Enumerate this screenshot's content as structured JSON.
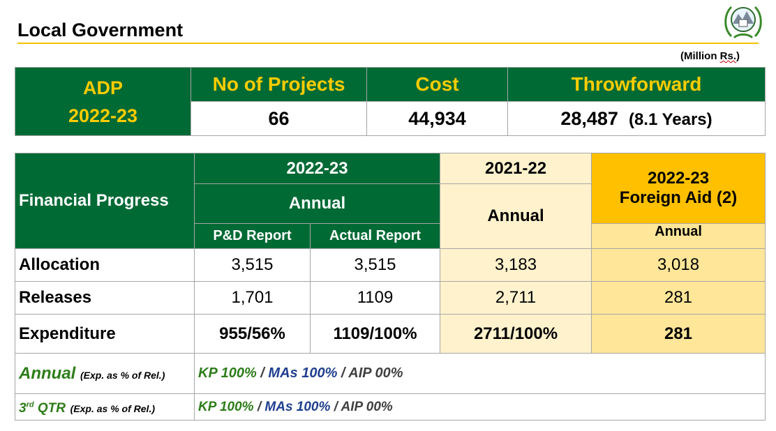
{
  "header": {
    "title": "Local Government",
    "units_open": "(Million ",
    "units_word": "Rs.",
    "units_close": ")"
  },
  "summary": {
    "adp_label": "ADP",
    "adp_year": "2022-23",
    "col_projects": "No of Projects",
    "col_cost": "Cost",
    "col_throwforward": "Throwforward",
    "projects": "66",
    "cost": "44,934",
    "throwforward": "28,487",
    "throwforward_years": "(8.1 Years)"
  },
  "progress": {
    "row_header": "Financial Progress",
    "col_2022": "2022-23",
    "col_2022_annual": "Annual",
    "col_pd": "P&D Report",
    "col_actual": "Actual Report",
    "col_2021": "2021-22",
    "col_2021_annual": "Annual",
    "col_foreign_year": "2022-23",
    "col_foreign_label": "Foreign Aid (2)",
    "col_foreign_annual": "Annual",
    "rows": [
      {
        "label": "Allocation",
        "pd": "3,515",
        "actual": "3,515",
        "prev": "3,183",
        "foreign": "3,018"
      },
      {
        "label": "Releases",
        "pd": "1,701",
        "actual": "1109",
        "prev": "2,711",
        "foreign": "281"
      },
      {
        "label": "Expenditure",
        "pd": "955/56%",
        "actual": "1109/100%",
        "prev": "2711/100%",
        "foreign": "281"
      }
    ],
    "annual": {
      "label": "Annual",
      "note": "(Exp. as % of Rel.)",
      "kp": "KP  100%",
      "sep1": " / ",
      "mas": "MAs 100%",
      "sep2": "  / ",
      "aip": "AIP 00%"
    },
    "qtr": {
      "label_num": "3",
      "label_sup": "rd",
      "label_rest": " QTR",
      "note": "(Exp. as % of Rel.)",
      "kp": "KP  100%",
      "sep1": " / ",
      "mas": "MAs 100%",
      "sep2": "  / ",
      "aip": "AIP 00%"
    }
  },
  "colors": {
    "green": "#006a35",
    "gold": "#ffcc00",
    "cream": "#fff2cc",
    "amber": "#ffc000",
    "light_amber": "#ffe699"
  },
  "icons": {
    "logo": "provincial-emblem-icon"
  }
}
